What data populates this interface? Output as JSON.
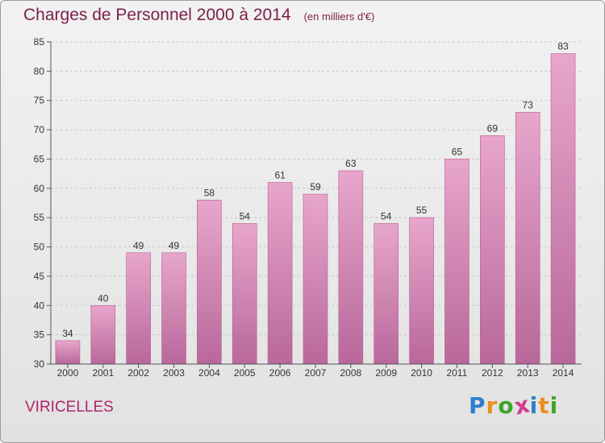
{
  "brand": {
    "name": "Proxiti",
    "letters": [
      "P",
      "r",
      "o",
      "x",
      "i",
      "t",
      "i"
    ],
    "letter_colors": [
      "#2e7fd0",
      "#e8901c",
      "#3fa52a",
      "#d43d8c",
      "#2e7fd0",
      "#e8901c",
      "#3fa52a"
    ]
  },
  "location": "VIRICELLES",
  "colors": {
    "bar": "#d88cba",
    "bar_dark": "#b5608f",
    "title": "#7a1f4a",
    "grid": "#c8c8c8"
  },
  "chart_data": {
    "type": "bar",
    "title": "Charges de Personnel 2000 à 2014",
    "subtitle": "(en milliers d'€)",
    "xlabel": "",
    "ylabel": "",
    "categories": [
      "2000",
      "2001",
      "2002",
      "2003",
      "2004",
      "2005",
      "2006",
      "2007",
      "2008",
      "2009",
      "2010",
      "2011",
      "2012",
      "2013",
      "2014"
    ],
    "values": [
      34,
      40,
      49,
      49,
      58,
      54,
      61,
      59,
      63,
      54,
      55,
      65,
      69,
      73,
      83
    ],
    "ylim": [
      30,
      85
    ],
    "yticks": [
      30,
      35,
      40,
      45,
      50,
      55,
      60,
      65,
      70,
      75,
      80,
      85
    ],
    "grid": "horizontal dashed",
    "legend": "none"
  }
}
